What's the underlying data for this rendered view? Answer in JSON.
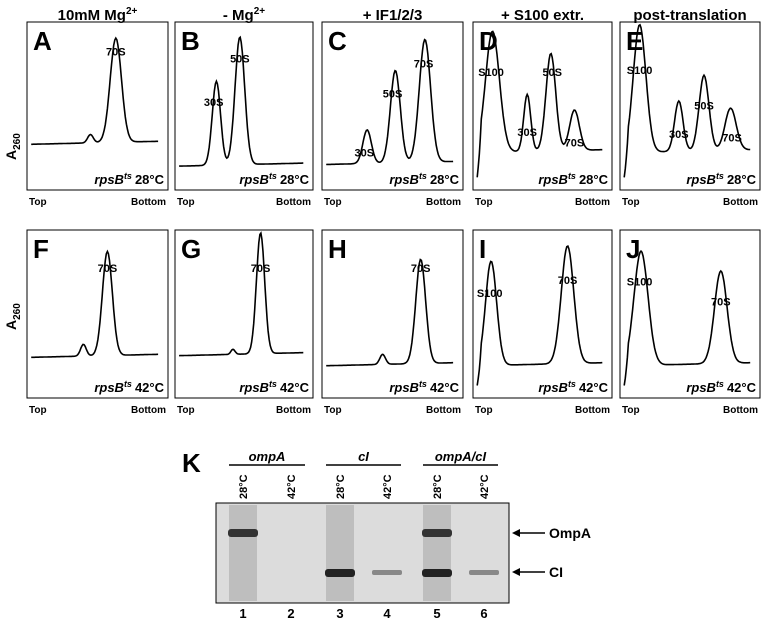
{
  "column_headers": [
    {
      "text": "10mM Mg",
      "sup": "2+"
    },
    {
      "text": "- Mg",
      "sup": "2+"
    },
    {
      "text": "+ IF1/2/3"
    },
    {
      "text": "+ S100 extr."
    },
    {
      "text": "post-translation"
    }
  ],
  "y_axis_label": {
    "text": "A",
    "sub": "260"
  },
  "panels": [
    {
      "letter": "A",
      "peaks": [
        "70S"
      ],
      "strain": "rpsB",
      "strain_sup": "ts",
      "temp": "28°C",
      "left": "Top",
      "right": "Bottom"
    },
    {
      "letter": "B",
      "peaks": [
        "30S",
        "50S"
      ],
      "strain": "rpsB",
      "strain_sup": "ts",
      "temp": "28°C",
      "left": "Top",
      "right": "Bottom"
    },
    {
      "letter": "C",
      "peaks": [
        "30S",
        "50S",
        "70S"
      ],
      "strain": "rpsB",
      "strain_sup": "ts",
      "temp": "28°C",
      "left": "Top",
      "right": "Bottom"
    },
    {
      "letter": "D",
      "peaks": [
        "S100",
        "30S",
        "50S",
        "70S"
      ],
      "strain": "rpsB",
      "strain_sup": "ts",
      "temp": "28°C",
      "left": "Top",
      "right": "Bottom"
    },
    {
      "letter": "E",
      "peaks": [
        "S100",
        "30S",
        "50S",
        "70S"
      ],
      "strain": "rpsB",
      "strain_sup": "ts",
      "temp": "28°C",
      "left": "Top",
      "right": "Bottom"
    },
    {
      "letter": "F",
      "peaks": [
        "70S"
      ],
      "strain": "rpsB",
      "strain_sup": "ts",
      "temp": "42°C",
      "left": "Top",
      "right": "Bottom"
    },
    {
      "letter": "G",
      "peaks": [
        "70S"
      ],
      "strain": "rpsB",
      "strain_sup": "ts",
      "temp": "42°C",
      "left": "Top",
      "right": "Bottom"
    },
    {
      "letter": "H",
      "peaks": [
        "70S"
      ],
      "strain": "rpsB",
      "strain_sup": "ts",
      "temp": "42°C",
      "left": "Top",
      "right": "Bottom"
    },
    {
      "letter": "I",
      "peaks": [
        "S100",
        "70S"
      ],
      "strain": "rpsB",
      "strain_sup": "ts",
      "temp": "42°C",
      "left": "Top",
      "right": "Bottom"
    },
    {
      "letter": "J",
      "peaks": [
        "S100",
        "70S"
      ],
      "strain": "rpsB",
      "strain_sup": "ts",
      "temp": "42°C",
      "left": "Top",
      "right": "Bottom"
    }
  ],
  "gel": {
    "letter": "K",
    "groups": [
      "ompA",
      "cI",
      "ompA/cI"
    ],
    "temps": [
      "28°C",
      "42°C",
      "28°C",
      "42°C",
      "28°C",
      "42°C"
    ],
    "lanes": [
      "1",
      "2",
      "3",
      "4",
      "5",
      "6"
    ],
    "bands": [
      "OmpA",
      "CI"
    ]
  }
}
